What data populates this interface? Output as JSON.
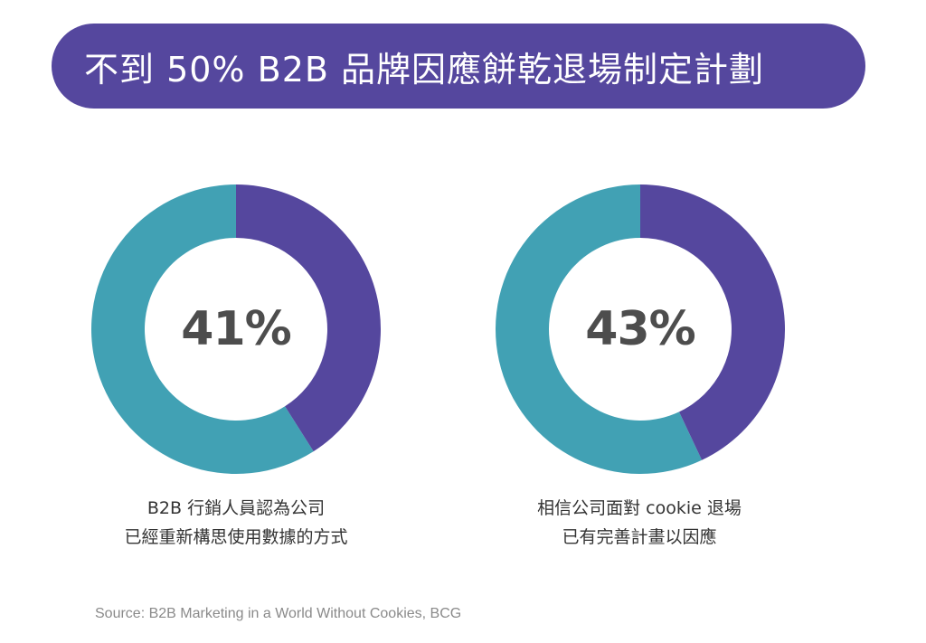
{
  "title": "不到 50% B2B 品牌因應餅乾退場制定計劃",
  "colors": {
    "accent": "#55479e",
    "secondary": "#41a1b4",
    "center_text": "#4d4d4d"
  },
  "chart_data": [
    {
      "type": "pie",
      "center_label": "41%",
      "values": [
        41,
        59
      ],
      "caption_lines": [
        "B2B 行銷人員認為公司",
        "已經重新構思使用數據的方式"
      ]
    },
    {
      "type": "pie",
      "center_label": "43%",
      "values": [
        43,
        57
      ],
      "caption_lines": [
        "相信公司面對 cookie 退場",
        "已有完善計畫以因應"
      ]
    }
  ],
  "source": "Source: B2B Marketing in a World Without Cookies, BCG"
}
